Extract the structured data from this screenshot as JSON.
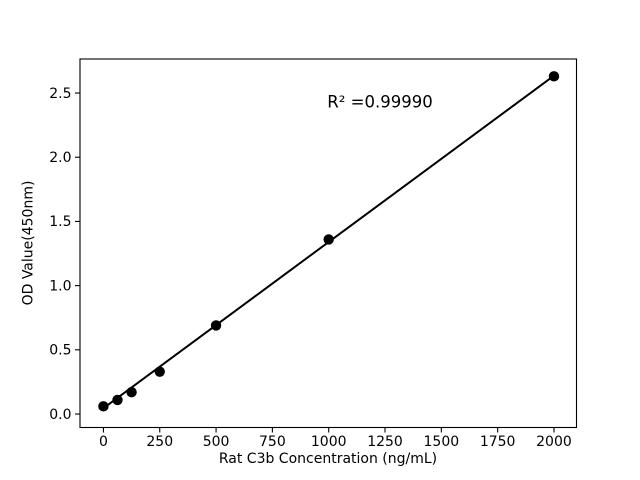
{
  "figure": {
    "background_color": "#ffffff",
    "foreground_color": "#000000"
  },
  "chart_data": {
    "type": "scatter",
    "title": "",
    "xlabel": "Rat C3b Concentration (ng/mL)",
    "ylabel": "OD Value(450nm)",
    "x": [
      0,
      62.5,
      125,
      250,
      500,
      1000,
      2000
    ],
    "y": [
      0.06,
      0.11,
      0.17,
      0.33,
      0.69,
      1.36,
      2.63
    ],
    "fit_line": {
      "x0": 0,
      "y0": 0.045,
      "x1": 2000,
      "y1": 2.635
    },
    "annotation": {
      "text": "R² =0.99990",
      "r_squared": 0.9999
    },
    "x_ticks": [
      0,
      250,
      500,
      750,
      1000,
      1250,
      1500,
      1750,
      2000
    ],
    "x_tick_labels": [
      "0",
      "250",
      "500",
      "750",
      "1000",
      "1250",
      "1500",
      "1750",
      "2000"
    ],
    "y_ticks": [
      0.0,
      0.5,
      1.0,
      1.5,
      2.0,
      2.5
    ],
    "y_tick_labels": [
      "0.0",
      "0.5",
      "1.0",
      "1.5",
      "2.0",
      "2.5"
    ],
    "xlim": [
      -104,
      2100
    ],
    "ylim": [
      -0.105,
      2.765
    ],
    "grid": false,
    "legend": false,
    "marker_color": "#000000",
    "line_color": "#000000"
  }
}
